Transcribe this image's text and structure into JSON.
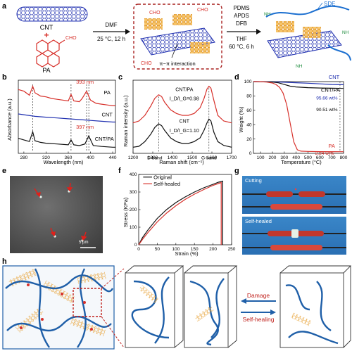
{
  "panel_labels": {
    "a": "a",
    "b": "b",
    "c": "c",
    "d": "d",
    "e": "e",
    "f": "f",
    "g": "g",
    "h": "h"
  },
  "colors": {
    "red": "#d7302a",
    "blue": "#1f2fb0",
    "navy": "#1b2a7a",
    "orange": "#f2a83a",
    "black": "#111111"
  },
  "scheme": {
    "cnt": "CNT",
    "plus": "+",
    "pa": "PA",
    "cho": "CHO",
    "step1_solvent": "DMF",
    "step1_cond": "25 °C, 12 h",
    "pi_label": "π−π interaction",
    "step2_reagents": [
      "PDMS",
      "APDS",
      "DFB"
    ],
    "step2_solvent": "THF",
    "step2_cond": "60 °C, 6 h",
    "sde": "SDE",
    "nh": "NH"
  },
  "chart_data": [
    {
      "type": "line",
      "panel": "b",
      "xlabel": "Wavelength (nm)",
      "ylabel": "Absorbance (a.u.)",
      "xlim": [
        270,
        445
      ],
      "xticks": [
        280,
        320,
        360,
        400,
        440
      ],
      "series": [
        {
          "name": "PA",
          "color": "#d7302a",
          "x": [
            270,
            280,
            290,
            296,
            300,
            310,
            320,
            330,
            340,
            350,
            360,
            365,
            370,
            380,
            385,
            393,
            400,
            410,
            420,
            430,
            440,
            445
          ],
          "y": [
            0.86,
            0.84,
            0.79,
            0.9,
            0.82,
            0.78,
            0.77,
            0.75,
            0.74,
            0.73,
            0.72,
            0.8,
            0.72,
            0.71,
            0.75,
            0.84,
            0.73,
            0.69,
            0.68,
            0.67,
            0.66,
            0.66
          ]
        },
        {
          "name": "CNT",
          "color": "#1f2fb0",
          "x": [
            270,
            280,
            300,
            320,
            340,
            360,
            380,
            400,
            420,
            440,
            445
          ],
          "y": [
            0.56,
            0.55,
            0.53,
            0.52,
            0.51,
            0.5,
            0.49,
            0.48,
            0.47,
            0.46,
            0.46
          ]
        },
        {
          "name": "CNT/PA",
          "color": "#111111",
          "x": [
            270,
            280,
            290,
            296,
            300,
            310,
            320,
            340,
            360,
            365,
            370,
            380,
            390,
            397,
            405,
            420,
            440,
            445
          ],
          "y": [
            0.26,
            0.24,
            0.22,
            0.34,
            0.23,
            0.21,
            0.2,
            0.19,
            0.18,
            0.24,
            0.18,
            0.17,
            0.19,
            0.29,
            0.17,
            0.16,
            0.15,
            0.15
          ]
        }
      ],
      "annotations": [
        "393 nm",
        "397 nm"
      ],
      "annotation_x": [
        393,
        397
      ],
      "dashed_markers_x": [
        296,
        365,
        393,
        397
      ]
    },
    {
      "type": "line",
      "panel": "c",
      "xlabel": "Raman shift (cm⁻¹)",
      "ylabel": "Raman intensity (a.u.)",
      "xlim": [
        1200,
        1700
      ],
      "xticks": [
        1200,
        1300,
        1400,
        1500,
        1600,
        1700
      ],
      "series": [
        {
          "name": "CNT/PA",
          "color": "#d7302a",
          "x": [
            1200,
            1230,
            1260,
            1290,
            1310,
            1330,
            1345,
            1360,
            1390,
            1420,
            1450,
            1480,
            1510,
            1540,
            1560,
            1575,
            1585,
            1595,
            1610,
            1630,
            1660,
            1700
          ],
          "y": [
            0.58,
            0.6,
            0.66,
            0.76,
            0.84,
            0.88,
            0.86,
            0.8,
            0.72,
            0.68,
            0.66,
            0.66,
            0.68,
            0.74,
            0.84,
            0.94,
            0.97,
            0.95,
            0.82,
            0.66,
            0.6,
            0.58
          ]
        },
        {
          "name": "CNT",
          "color": "#111111",
          "x": [
            1200,
            1230,
            1260,
            1290,
            1310,
            1330,
            1345,
            1360,
            1390,
            1420,
            1450,
            1480,
            1510,
            1540,
            1560,
            1575,
            1585,
            1595,
            1610,
            1630,
            1660,
            1700
          ],
          "y": [
            0.32,
            0.33,
            0.38,
            0.46,
            0.53,
            0.57,
            0.55,
            0.5,
            0.42,
            0.38,
            0.36,
            0.36,
            0.38,
            0.42,
            0.5,
            0.58,
            0.62,
            0.6,
            0.48,
            0.38,
            0.34,
            0.32
          ]
        }
      ],
      "annotations": [
        "CNT/PA",
        "I_D/I_G=0.98",
        "CNT",
        "I_D/I_G=1.10",
        "D-band",
        "G-band"
      ]
    },
    {
      "type": "line",
      "panel": "d",
      "xlabel": "Temperature (°C)",
      "ylabel": "Weight (%)",
      "xlim": [
        40,
        800
      ],
      "ylim": [
        0,
        100
      ],
      "xticks": [
        100,
        200,
        300,
        400,
        500,
        600,
        700,
        800
      ],
      "yticks": [
        0,
        20,
        40,
        60,
        80,
        100
      ],
      "series": [
        {
          "name": "CNT",
          "color": "#1f2fb0",
          "x": [
            40,
            100,
            200,
            300,
            400,
            500,
            600,
            700,
            800
          ],
          "y": [
            100,
            99.9,
            99.6,
            99.1,
            98.4,
            97.7,
            96.9,
            96,
            95.66
          ]
        },
        {
          "name": "CNT/PA",
          "color": "#111111",
          "x": [
            40,
            100,
            200,
            250,
            300,
            350,
            400,
            500,
            600,
            700,
            800
          ],
          "y": [
            100,
            99.9,
            99.4,
            98.3,
            96,
            93.6,
            92.5,
            91.6,
            91.1,
            90.8,
            90.51
          ]
        },
        {
          "name": "PA",
          "color": "#d7302a",
          "x": [
            40,
            100,
            150,
            200,
            230,
            260,
            290,
            320,
            350,
            380,
            410,
            440,
            500,
            600,
            800
          ],
          "y": [
            100,
            99.9,
            99.4,
            98,
            96,
            92,
            84,
            68,
            42,
            16,
            5,
            3,
            2.6,
            2.4,
            2.24
          ]
        }
      ],
      "annotations": [
        "95.66 wt%",
        "90.51 wt%",
        "2.24 wt%"
      ]
    },
    {
      "type": "line",
      "panel": "f",
      "xlabel": "Strain (%)",
      "ylabel": "Stress (KPa)",
      "xlim": [
        0,
        250
      ],
      "ylim": [
        0,
        400
      ],
      "xticks": [
        0,
        50,
        100,
        150,
        200,
        250
      ],
      "yticks": [
        0,
        100,
        200,
        300,
        400
      ],
      "series": [
        {
          "name": "Original",
          "color": "#111111",
          "x": [
            0,
            10,
            25,
            50,
            75,
            100,
            125,
            150,
            175,
            200,
            215,
            226,
            226
          ],
          "y": [
            0,
            40,
            85,
            150,
            200,
            240,
            272,
            300,
            324,
            344,
            356,
            362,
            0
          ]
        },
        {
          "name": "Self-healed",
          "color": "#d7302a",
          "x": [
            0,
            10,
            25,
            50,
            75,
            100,
            125,
            150,
            175,
            200,
            222,
            222
          ],
          "y": [
            0,
            30,
            70,
            130,
            180,
            222,
            258,
            288,
            314,
            338,
            354,
            0
          ]
        }
      ]
    }
  ],
  "sem": {
    "scale_bar": "5 μm"
  },
  "photos": {
    "cutting": "Cutting",
    "self_healed": "Self-healed"
  },
  "schematic": {
    "damage": "Damage",
    "self_healing": "Self-healing"
  }
}
